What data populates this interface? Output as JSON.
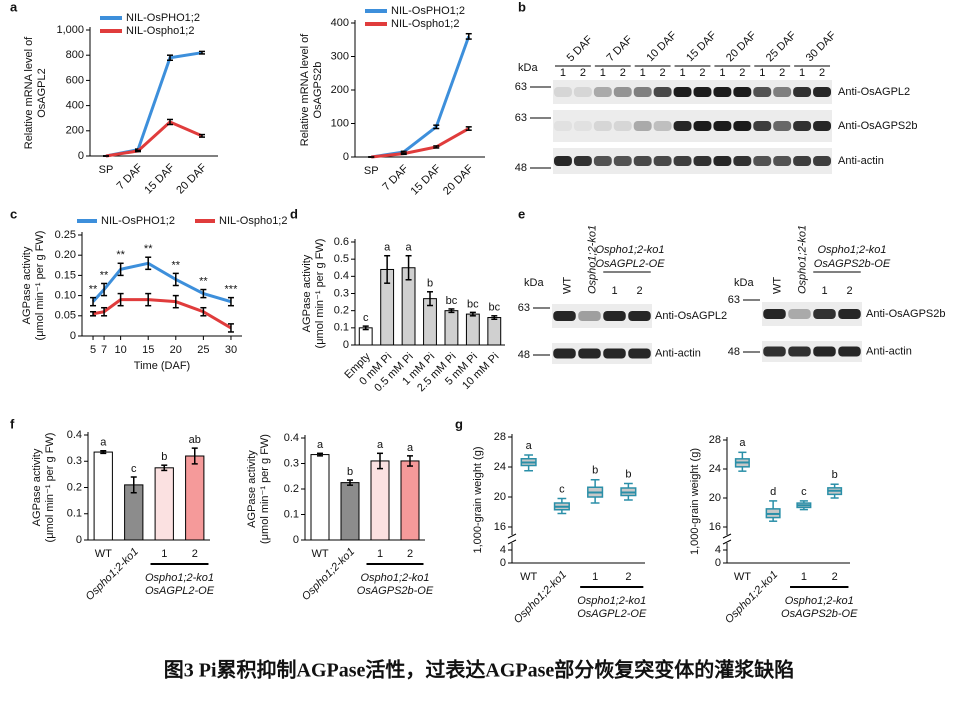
{
  "panels": [
    "a",
    "b",
    "c",
    "d",
    "e",
    "f",
    "g"
  ],
  "chart_data": [
    {
      "type": "line",
      "ylabel": [
        "Relative mRNA level of",
        "OsAGPL2"
      ],
      "categories": [
        "SP",
        "7 DAF",
        "15 DAF",
        "20 DAF"
      ],
      "series": [
        {
          "name": "NIL-OsPHO1;2",
          "color": "#3d8fdb",
          "values": [
            0,
            50,
            780,
            820
          ],
          "errors": [
            0,
            5,
            20,
            10
          ]
        },
        {
          "name": "NIL-Ospho1;2",
          "color": "#e03c3c",
          "values": [
            0,
            40,
            270,
            160
          ],
          "errors": [
            0,
            5,
            20,
            10
          ]
        }
      ],
      "ylim": [
        0,
        1000
      ],
      "yticks": [
        0,
        200,
        400,
        600,
        800,
        {
          "value": 1000,
          "label": "1,000"
        }
      ],
      "legend": "top-left"
    },
    {
      "type": "line",
      "ylabel": [
        "Relative mRNA level of",
        "OsAGPS2b"
      ],
      "categories": [
        "SP",
        "7 DAF",
        "15 DAF",
        "20 DAF"
      ],
      "series": [
        {
          "name": "NIL-OsPHO1;2",
          "color": "#3d8fdb",
          "values": [
            0,
            15,
            90,
            360
          ],
          "errors": [
            0,
            2,
            5,
            8
          ]
        },
        {
          "name": "NIL-Ospho1;2",
          "color": "#e03c3c",
          "values": [
            0,
            10,
            30,
            85
          ],
          "errors": [
            0,
            2,
            3,
            5
          ]
        }
      ],
      "ylim": [
        0,
        400
      ],
      "yticks": [
        0,
        100,
        200,
        300,
        400
      ],
      "legend": "top-left"
    },
    {
      "type": "line",
      "ylabel": [
        "AGPase activity",
        "(μmol min⁻¹ per g FW)"
      ],
      "xlabel": "Time (DAF)",
      "x": [
        5,
        7,
        10,
        15,
        20,
        25,
        30
      ],
      "series": [
        {
          "name": "NIL-OsPHO1;2",
          "color": "#3d8fdb",
          "values": [
            0.085,
            0.115,
            0.165,
            0.18,
            0.14,
            0.105,
            0.085
          ],
          "errors": [
            0.01,
            0.015,
            0.015,
            0.015,
            0.015,
            0.01,
            0.01
          ]
        },
        {
          "name": "NIL-Ospho1;2",
          "color": "#e03c3c",
          "values": [
            0.055,
            0.06,
            0.09,
            0.09,
            0.085,
            0.06,
            0.02
          ],
          "errors": [
            0.005,
            0.01,
            0.015,
            0.015,
            0.015,
            0.01,
            0.01
          ]
        }
      ],
      "significance": [
        "**",
        "**",
        "**",
        "**",
        "**",
        "**",
        "***"
      ],
      "xlim": [
        3,
        32
      ],
      "xticks": [
        5,
        7,
        10,
        15,
        20,
        25,
        30
      ],
      "ylim": [
        0,
        0.25
      ],
      "yticks": [
        0,
        0.05,
        {
          "value": 0.1,
          "label": "0.10"
        },
        0.15,
        {
          "value": 0.2,
          "label": "0.20"
        },
        0.25
      ],
      "legend": "top"
    },
    {
      "type": "bar",
      "ylabel": [
        "AGPase activity",
        "(μmol min⁻¹ per g FW)"
      ],
      "categories": [
        "Empty",
        "0 mM Pi",
        "0.5 mM Pi",
        "1 mM Pi",
        "2.5 mM Pi",
        "5 mM Pi",
        "10 mM Pi"
      ],
      "values": [
        0.1,
        0.44,
        0.45,
        0.27,
        0.2,
        0.18,
        0.16
      ],
      "errors": [
        0.01,
        0.08,
        0.07,
        0.04,
        0.01,
        0.01,
        0.01
      ],
      "letters": [
        "c",
        "a",
        "a",
        "b",
        "bc",
        "bc",
        "bc"
      ],
      "colors": [
        "#ffffff",
        "#d0d0d0",
        "#d0d0d0",
        "#d0d0d0",
        "#d0d0d0",
        "#d0d0d0",
        "#d0d0d0"
      ],
      "ylim": [
        0,
        0.6
      ],
      "yticks": [
        0,
        0.1,
        0.2,
        0.3,
        0.4,
        0.5,
        0.6
      ]
    },
    {
      "type": "bar",
      "ylabel": [
        "AGPase activity",
        "(μmol min⁻¹ per g FW)"
      ],
      "categories": [
        "WT",
        "Ospho1;2-ko1",
        "1",
        "2"
      ],
      "group_label": [
        "Ospho1;2-ko1",
        "OsAGPL2-OE"
      ],
      "values": [
        0.335,
        0.21,
        0.275,
        0.32
      ],
      "errors": [
        0.005,
        0.03,
        0.01,
        0.03
      ],
      "letters": [
        "a",
        "c",
        "b",
        "ab"
      ],
      "colors": [
        "#ffffff",
        "#8c8c8c",
        "#fbe1e1",
        "#f59a9a"
      ],
      "ylim": [
        0,
        0.4
      ],
      "yticks": [
        0,
        0.1,
        0.2,
        0.3,
        0.4
      ]
    },
    {
      "type": "bar",
      "ylabel": [
        "AGPase activity",
        "(μmol min⁻¹ per g FW)"
      ],
      "categories": [
        "WT",
        "Ospho1;2-ko1",
        "1",
        "2"
      ],
      "group_label": [
        "Ospho1;2-ko1",
        "OsAGPS2b-OE"
      ],
      "values": [
        0.335,
        0.225,
        0.31,
        0.31
      ],
      "errors": [
        0.005,
        0.01,
        0.03,
        0.02
      ],
      "letters": [
        "a",
        "b",
        "a",
        "a"
      ],
      "colors": [
        "#ffffff",
        "#8c8c8c",
        "#fbe1e1",
        "#f59a9a"
      ],
      "ylim": [
        0,
        0.4
      ],
      "yticks": [
        0,
        0.1,
        0.2,
        0.3,
        0.4
      ]
    },
    {
      "type": "box",
      "ylabel": [
        "1,000-grain weight (g)"
      ],
      "categories": [
        "WT",
        "Ospho1;2-ko1",
        "1",
        "2"
      ],
      "group_label": [
        "Ospho1;2-ko1",
        "OsAGPL2-OE"
      ],
      "boxes": [
        {
          "min": 23.5,
          "q1": 24.2,
          "median": 24.6,
          "q3": 25.1,
          "max": 25.6
        },
        {
          "min": 17.8,
          "q1": 18.3,
          "median": 18.7,
          "q3": 19.2,
          "max": 19.8
        },
        {
          "min": 19.2,
          "q1": 20.0,
          "median": 20.6,
          "q3": 21.3,
          "max": 22.3
        },
        {
          "min": 19.6,
          "q1": 20.2,
          "median": 20.6,
          "q3": 21.2,
          "max": 21.8
        }
      ],
      "letters": [
        "a",
        "c",
        "b",
        "b"
      ],
      "color": "#2a8fa8",
      "box_fill": "#c8c8c8",
      "ylim": [
        16,
        28
      ],
      "yticks": [
        16,
        20,
        24,
        28
      ],
      "break_ticks": [
        0,
        4
      ]
    },
    {
      "type": "box",
      "ylabel": [
        "1,000-grain weight (g)"
      ],
      "categories": [
        "WT",
        "Ospho1;2-ko1",
        "1",
        "2"
      ],
      "group_label": [
        "Ospho1;2-ko1",
        "OsAGPS2b-OE"
      ],
      "boxes": [
        {
          "min": 23.7,
          "q1": 24.3,
          "median": 24.9,
          "q3": 25.4,
          "max": 26.3
        },
        {
          "min": 16.8,
          "q1": 17.3,
          "median": 17.8,
          "q3": 18.5,
          "max": 19.6
        },
        {
          "min": 18.4,
          "q1": 18.7,
          "median": 19.0,
          "q3": 19.3,
          "max": 19.6
        },
        {
          "min": 20.0,
          "q1": 20.5,
          "median": 21.0,
          "q3": 21.4,
          "max": 21.9
        }
      ],
      "letters": [
        "a",
        "d",
        "c",
        "b"
      ],
      "color": "#2a8fa8",
      "box_fill": "#c8c8c8",
      "ylim": [
        16,
        28
      ],
      "yticks": [
        16,
        20,
        24,
        28
      ],
      "break_ticks": [
        0,
        4
      ]
    }
  ],
  "blots": [
    {
      "kda": "kDa",
      "headers": [
        "5 DAF",
        "7 DAF",
        "10 DAF",
        "15 DAF",
        "20 DAF",
        "25 DAF",
        "30 DAF"
      ],
      "lane_numbers": [
        "1",
        "2",
        "1",
        "2",
        "1",
        "2",
        "1",
        "2",
        "1",
        "2",
        "1",
        "2",
        "1",
        "2"
      ],
      "markers": [
        "63",
        "63",
        "48"
      ],
      "labels": [
        "Anti-OsAGPL2",
        "Anti-OsAGPS2b",
        "Anti-actin"
      ]
    },
    {
      "kda": "kDa",
      "headers": [
        "WT",
        "Ospho1;2-ko1"
      ],
      "group_header": [
        "Ospho1;2-ko1",
        "OsAGPL2-OE"
      ],
      "lane_numbers": [
        "1",
        "2"
      ],
      "markers": [
        "63",
        "48"
      ],
      "labels": [
        "Anti-OsAGPL2",
        "Anti-actin"
      ]
    },
    {
      "kda": "kDa",
      "headers": [
        "WT",
        "Ospho1;2-ko1"
      ],
      "group_header": [
        "Ospho1;2-ko1",
        "OsAGPS2b-OE"
      ],
      "lane_numbers": [
        "1",
        "2"
      ],
      "markers": [
        "63",
        "48"
      ],
      "labels": [
        "Anti-OsAGPS2b",
        "Anti-actin"
      ]
    }
  ],
  "caption": "图3 Pi累积抑制AGPase活性，过表达AGPase部分恢复突变体的灌浆缺陷"
}
